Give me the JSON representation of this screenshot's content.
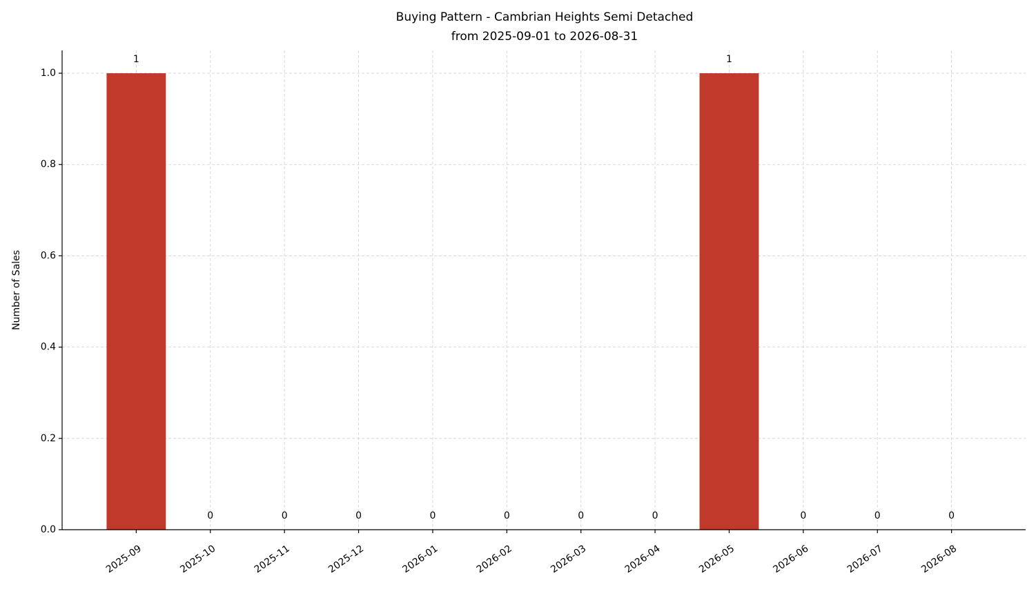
{
  "chart_data": {
    "type": "bar",
    "title": "Buying Pattern - Cambrian Heights Semi Detached",
    "subtitle": "from 2025-09-01 to 2026-08-31",
    "y_label": "Number of Sales",
    "categories": [
      "2025-09",
      "2025-10",
      "2025-11",
      "2025-12",
      "2026-01",
      "2026-02",
      "2026-03",
      "2026-04",
      "2026-05",
      "2026-06",
      "2026-07",
      "2026-08"
    ],
    "values": [
      1,
      0,
      0,
      0,
      0,
      0,
      0,
      0,
      1,
      0,
      0,
      0
    ],
    "color": "#c0392b",
    "ylim": [
      0,
      1.05
    ],
    "yticks": [
      {
        "value": 0,
        "label": "0.0"
      },
      0.2,
      0.4,
      0.6,
      0.8,
      {
        "value": 1,
        "label": "1.0"
      }
    ],
    "grid": true
  }
}
